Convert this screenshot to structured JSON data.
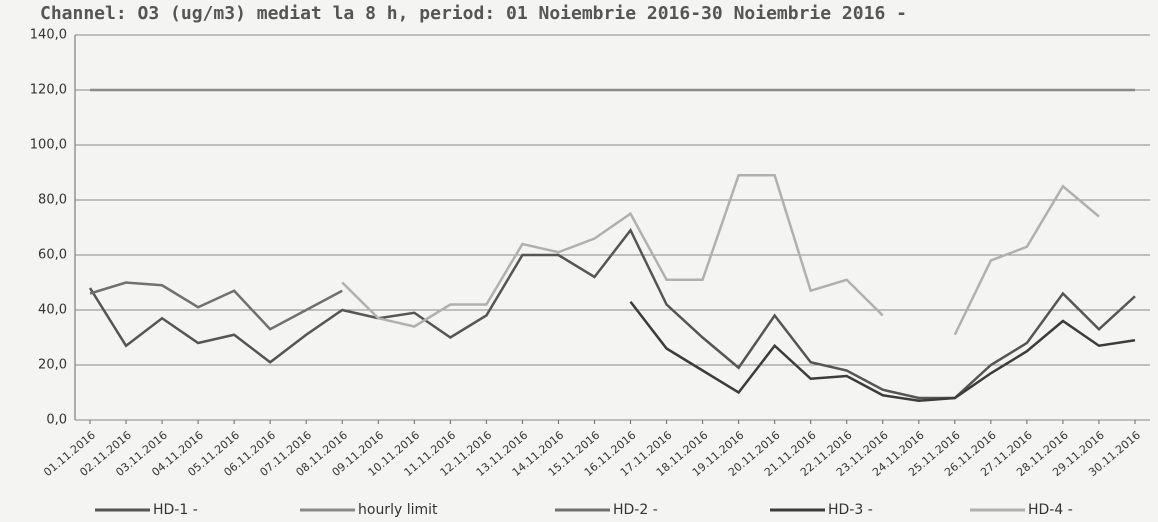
{
  "chart_data": {
    "type": "line",
    "title": "Channel: O3 (ug/m3) mediat la 8 h, period: 01 Noiembrie 2016-30 Noiembrie 2016 -",
    "categories": [
      "01.11.2016",
      "02.11.2016",
      "03.11.2016",
      "04.11.2016",
      "05.11.2016",
      "06.11.2016",
      "07.11.2016",
      "08.11.2016",
      "09.11.2016",
      "10.11.2016",
      "11.11.2016",
      "12.11.2016",
      "13.11.2016",
      "14.11.2016",
      "15.11.2016",
      "16.11.2016",
      "17.11.2016",
      "18.11.2016",
      "19.11.2016",
      "20.11.2016",
      "21.11.2016",
      "22.11.2016",
      "23.11.2016",
      "24.11.2016",
      "25.11.2016",
      "26.11.2016",
      "27.11.2016",
      "28.11.2016",
      "29.11.2016",
      "30.11.2016"
    ],
    "series": [
      {
        "name": "HD-1 -",
        "color": "#555555",
        "values": [
          48,
          27,
          37,
          28,
          31,
          21,
          31,
          40,
          37,
          39,
          30,
          38,
          60,
          60,
          52,
          69,
          42,
          30,
          19,
          38,
          21,
          18,
          11,
          8,
          8,
          20,
          28,
          46,
          33,
          45
        ]
      },
      {
        "name": "hourly limit",
        "color": "#8a8a8a",
        "values": [
          120,
          120,
          120,
          120,
          120,
          120,
          120,
          120,
          120,
          120,
          120,
          120,
          120,
          120,
          120,
          120,
          120,
          120,
          120,
          120,
          120,
          120,
          120,
          120,
          120,
          120,
          120,
          120,
          120,
          120
        ]
      },
      {
        "name": "HD-2 -",
        "color": "#707070",
        "values": [
          46,
          50,
          49,
          41,
          47,
          33,
          40,
          47,
          null,
          null,
          null,
          null,
          null,
          null,
          null,
          null,
          null,
          null,
          null,
          null,
          null,
          null,
          null,
          null,
          null,
          null,
          null,
          null,
          null,
          null
        ]
      },
      {
        "name": "HD-3 -",
        "color": "#3c3c3c",
        "values": [
          null,
          null,
          null,
          null,
          null,
          null,
          null,
          null,
          null,
          null,
          null,
          null,
          null,
          null,
          null,
          43,
          26,
          18,
          10,
          27,
          15,
          16,
          9,
          7,
          8,
          17,
          25,
          36,
          27,
          29
        ]
      },
      {
        "name": "HD-4 -",
        "color": "#b0b0b0",
        "values": [
          null,
          null,
          null,
          null,
          null,
          null,
          null,
          50,
          37,
          34,
          42,
          42,
          64,
          61,
          66,
          75,
          51,
          51,
          89,
          89,
          47,
          51,
          38,
          null,
          31,
          58,
          63,
          85,
          74,
          null
        ]
      }
    ],
    "ylim": [
      0,
      140
    ],
    "yticks": [
      {
        "value": 0,
        "label": "0,0"
      },
      {
        "value": 20,
        "label": "20,0"
      },
      {
        "value": 40,
        "label": "40,0"
      },
      {
        "value": 60,
        "label": "60,0"
      },
      {
        "value": 80,
        "label": "80,0"
      },
      {
        "value": 100,
        "label": "100,0"
      },
      {
        "value": 120,
        "label": "120,0"
      },
      {
        "value": 140,
        "label": "140,0"
      }
    ],
    "grid": true
  }
}
